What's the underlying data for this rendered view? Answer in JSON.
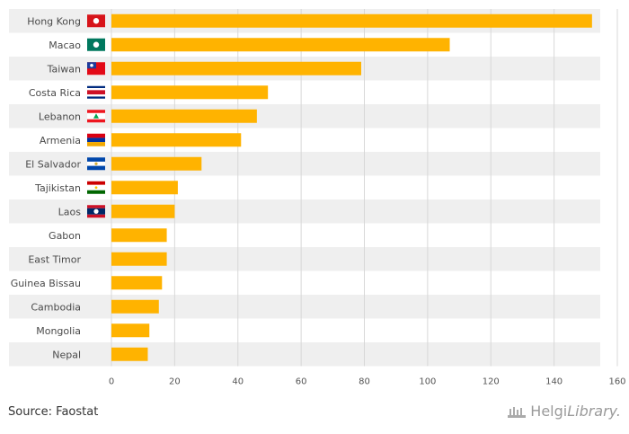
{
  "chart_data": {
    "type": "bar",
    "orientation": "horizontal",
    "categories": [
      "Hong Kong",
      "Macao",
      "Taiwan",
      "Costa Rica",
      "Lebanon",
      "Armenia",
      "El Salvador",
      "Tajikistan",
      "Laos",
      "Gabon",
      "East Timor",
      "Guinea Bissau",
      "Cambodia",
      "Mongolia",
      "Nepal"
    ],
    "values": [
      152,
      107,
      79,
      49.5,
      46,
      41,
      28.5,
      21,
      20,
      17.5,
      17.5,
      16,
      15,
      12,
      11.5
    ],
    "flags": [
      "hong-kong-flag",
      "macao-flag",
      "taiwan-flag",
      "costa-rica-flag",
      "lebanon-flag",
      "armenia-flag",
      "el-salvador-flag",
      "tajikistan-flag",
      "laos-flag",
      "",
      "",
      "",
      "",
      "",
      ""
    ],
    "xlim": [
      0,
      160
    ],
    "xticks": [
      0,
      20,
      40,
      60,
      80,
      100,
      120,
      140,
      160
    ],
    "bar_color": "#FFB300",
    "grid": true
  },
  "source": "Source: Faostat",
  "logo": {
    "main": "Helgi",
    "suffix": "Library."
  },
  "colors": {
    "band": "#efefef",
    "grid": "#d8d8d8",
    "text": "#4a4a4a"
  }
}
